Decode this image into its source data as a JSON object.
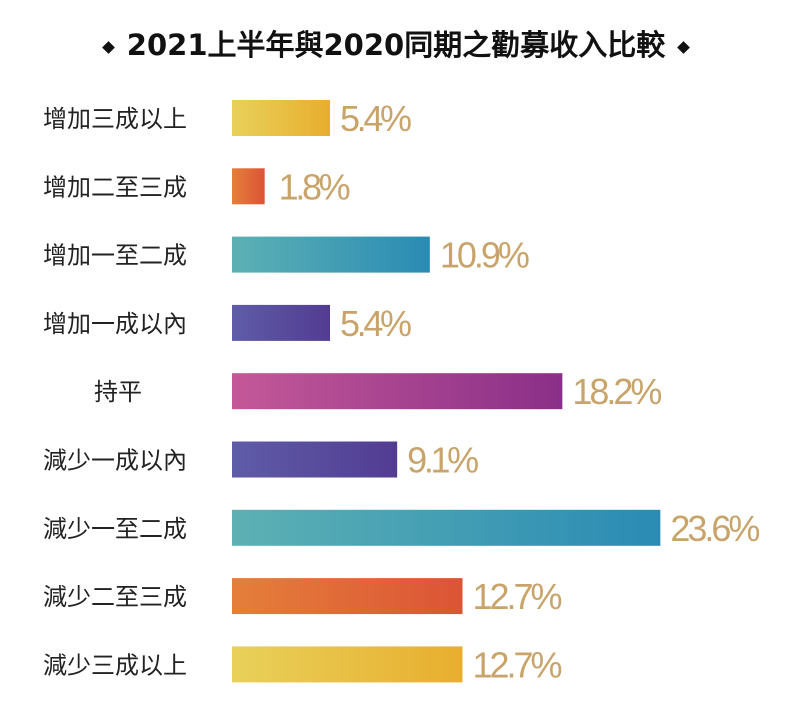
{
  "chart_data": {
    "type": "bar",
    "orientation": "horizontal",
    "title": "2021上半年與2020同期之勸募收入比較",
    "categories": [
      "增加三成以上",
      "增加二至三成",
      "增加一至二成",
      "增加一成以內",
      "持平",
      "減少一成以內",
      "減少一至二成",
      "減少二至三成",
      "減少三成以上"
    ],
    "values": [
      5.4,
      1.8,
      10.9,
      5.4,
      18.2,
      9.1,
      23.6,
      12.7,
      12.7
    ],
    "value_labels": [
      "5.4%",
      "1.8%",
      "10.9%",
      "5.4%",
      "18.2%",
      "9.1%",
      "23.6%",
      "12.7%",
      "12.7%"
    ],
    "unit": "%",
    "bar_gradients": [
      [
        "#E8D15A",
        "#E8AE2E"
      ],
      [
        "#E57F3A",
        "#DC5436"
      ],
      [
        "#5DB1B4",
        "#2A8BB4"
      ],
      [
        "#5F5CA8",
        "#523C92"
      ],
      [
        "#C45898",
        "#8A2F88"
      ],
      [
        "#5F5CA8",
        "#523C92"
      ],
      [
        "#5DB1B4",
        "#2A8BB4"
      ],
      [
        "#E57F3A",
        "#DC5436"
      ],
      [
        "#E8D15A",
        "#E8AE2E"
      ]
    ],
    "value_label_color": "#C9A46A",
    "grid": false,
    "legend": "none"
  }
}
